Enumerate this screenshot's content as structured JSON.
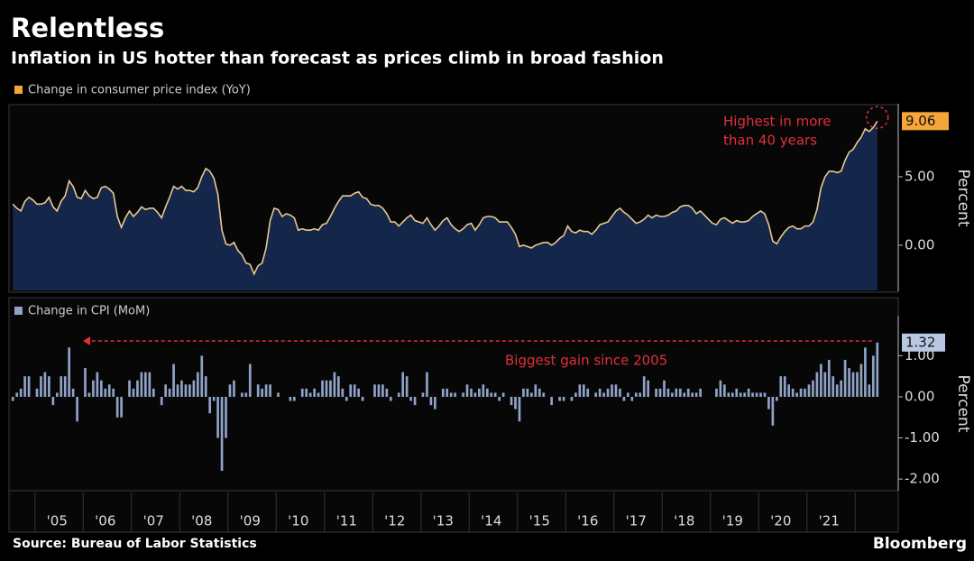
{
  "title": "Relentless",
  "subtitle": "Inflation in US hotter than forecast as prices climb in broad fashion",
  "source": "Source: Bureau of Labor Statistics",
  "brand": "Bloomberg",
  "chart_data": [
    {
      "type": "area",
      "y_label": "Percent",
      "annotation": [
        "Highest in more",
        "than 40 years"
      ],
      "ylim": [
        -3.3,
        10.2
      ],
      "yticks": [
        {
          "value": 0,
          "label": "0.00"
        },
        {
          "value": 5,
          "label": "5.00"
        }
      ],
      "series": [
        {
          "name": "Change in consumer price index (YoY)",
          "color": "#f5a53a",
          "line_color": "#e9c98f",
          "fill": "#14264a",
          "values": [
            3.0,
            2.7,
            2.5,
            3.2,
            3.5,
            3.3,
            3.0,
            3.0,
            3.1,
            3.5,
            2.8,
            2.5,
            3.2,
            3.6,
            4.7,
            4.3,
            3.5,
            3.4,
            4.0,
            3.6,
            3.4,
            3.5,
            4.2,
            4.3,
            4.1,
            3.8,
            2.1,
            1.3,
            2.0,
            2.5,
            2.1,
            2.4,
            2.8,
            2.6,
            2.7,
            2.7,
            2.4,
            2.0,
            2.8,
            3.5,
            4.3,
            4.1,
            4.3,
            4.0,
            4.0,
            3.9,
            4.2,
            5.0,
            5.6,
            5.4,
            4.9,
            3.7,
            1.1,
            0.1,
            0.0,
            0.2,
            -0.4,
            -0.7,
            -1.3,
            -1.4,
            -2.1,
            -1.5,
            -1.3,
            -0.2,
            1.8,
            2.7,
            2.6,
            2.1,
            2.3,
            2.2,
            2.0,
            1.1,
            1.2,
            1.1,
            1.1,
            1.2,
            1.1,
            1.5,
            1.6,
            2.1,
            2.7,
            3.2,
            3.6,
            3.6,
            3.6,
            3.8,
            3.9,
            3.5,
            3.4,
            3.0,
            2.9,
            2.9,
            2.7,
            2.3,
            1.7,
            1.7,
            1.4,
            1.7,
            2.0,
            2.2,
            1.8,
            1.7,
            1.6,
            2.0,
            1.5,
            1.1,
            1.4,
            1.8,
            2.0,
            1.5,
            1.2,
            1.0,
            1.2,
            1.5,
            1.6,
            1.1,
            1.5,
            2.0,
            2.1,
            2.1,
            2.0,
            1.7,
            1.7,
            1.7,
            1.3,
            0.8,
            -0.1,
            0.0,
            -0.1,
            -0.2,
            0.0,
            0.1,
            0.2,
            0.2,
            0.0,
            0.2,
            0.5,
            0.7,
            1.4,
            1.0,
            0.9,
            1.1,
            1.0,
            1.0,
            0.8,
            1.1,
            1.5,
            1.6,
            1.7,
            2.1,
            2.5,
            2.7,
            2.4,
            2.2,
            1.9,
            1.6,
            1.7,
            1.9,
            2.2,
            2.0,
            2.2,
            2.1,
            2.1,
            2.2,
            2.4,
            2.5,
            2.8,
            2.9,
            2.9,
            2.7,
            2.3,
            2.5,
            2.2,
            1.9,
            1.6,
            1.5,
            1.9,
            2.0,
            1.8,
            1.6,
            1.8,
            1.7,
            1.7,
            1.8,
            2.1,
            2.3,
            2.5,
            2.3,
            1.5,
            0.3,
            0.1,
            0.6,
            1.0,
            1.3,
            1.4,
            1.2,
            1.2,
            1.4,
            1.4,
            1.7,
            2.6,
            4.2,
            5.0,
            5.4,
            5.4,
            5.3,
            5.4,
            6.2,
            6.8,
            7.0,
            7.5,
            7.9,
            8.5,
            8.3,
            8.6,
            9.06
          ]
        }
      ]
    },
    {
      "type": "bar",
      "y_label": "Percent",
      "annotation": "Biggest gain since 2005",
      "ylim": [
        -2.26,
        1.93
      ],
      "yticks": [
        {
          "value": -2,
          "label": "-2.00"
        },
        {
          "value": -1,
          "label": "-1.00"
        },
        {
          "value": 0,
          "label": "0.00"
        },
        {
          "value": 1,
          "label": "1.00"
        }
      ],
      "categories": [
        null,
        null,
        null,
        null,
        null,
        null,
        null,
        null,
        null,
        null,
        null,
        "'05",
        null,
        null,
        null,
        null,
        null,
        null,
        null,
        null,
        null,
        null,
        null,
        "'06",
        null,
        null,
        null,
        null,
        null,
        null,
        null,
        null,
        null,
        null,
        null,
        "'07",
        null,
        null,
        null,
        null,
        null,
        null,
        null,
        null,
        null,
        null,
        null,
        "'08",
        null,
        null,
        null,
        null,
        null,
        null,
        null,
        null,
        null,
        null,
        null,
        "'09",
        null,
        null,
        null,
        null,
        null,
        null,
        null,
        null,
        null,
        null,
        null,
        "'10",
        null,
        null,
        null,
        null,
        null,
        null,
        null,
        null,
        null,
        null,
        null,
        "'11",
        null,
        null,
        null,
        null,
        null,
        null,
        null,
        null,
        null,
        null,
        null,
        "'12",
        null,
        null,
        null,
        null,
        null,
        null,
        null,
        null,
        null,
        null,
        null,
        "'13",
        null,
        null,
        null,
        null,
        null,
        null,
        null,
        null,
        null,
        null,
        null,
        "'14",
        null,
        null,
        null,
        null,
        null,
        null,
        null,
        null,
        null,
        null,
        null,
        "'15",
        null,
        null,
        null,
        null,
        null,
        null,
        null,
        null,
        null,
        null,
        null,
        "'16",
        null,
        null,
        null,
        null,
        null,
        null,
        null,
        null,
        null,
        null,
        null,
        "'17",
        null,
        null,
        null,
        null,
        null,
        null,
        null,
        null,
        null,
        null,
        null,
        "'18",
        null,
        null,
        null,
        null,
        null,
        null,
        null,
        null,
        null,
        null,
        null,
        "'19",
        null,
        null,
        null,
        null,
        null,
        null,
        null,
        null,
        null,
        null,
        null,
        "'20",
        null,
        null,
        null,
        null,
        null,
        null,
        null,
        null,
        null,
        null,
        null,
        "'21",
        null,
        null,
        null,
        null,
        null,
        null,
        null,
        null,
        null,
        null,
        null,
        null
      ],
      "series": [
        {
          "name": "Change in CPI  (MoM)",
          "color": "#8fa3c8",
          "values": [
            -0.1,
            0.1,
            0.2,
            0.5,
            0.5,
            0.0,
            0.2,
            0.5,
            0.6,
            0.5,
            -0.2,
            0.1,
            0.5,
            0.5,
            1.2,
            0.2,
            -0.6,
            0.0,
            0.7,
            0.1,
            0.4,
            0.6,
            0.4,
            0.2,
            0.3,
            0.2,
            -0.5,
            -0.5,
            0.0,
            0.4,
            0.2,
            0.4,
            0.6,
            0.6,
            0.6,
            0.2,
            0.0,
            -0.2,
            0.3,
            0.2,
            0.8,
            0.3,
            0.4,
            0.3,
            0.3,
            0.4,
            0.6,
            1.0,
            0.5,
            -0.4,
            -0.1,
            -1.0,
            -1.8,
            -1.0,
            0.3,
            0.4,
            0.0,
            0.1,
            0.1,
            0.8,
            0.0,
            0.3,
            0.2,
            0.3,
            0.3,
            0.0,
            0.1,
            0.0,
            0.0,
            -0.1,
            -0.1,
            0.0,
            0.2,
            0.2,
            0.1,
            0.2,
            0.1,
            0.4,
            0.4,
            0.4,
            0.6,
            0.5,
            0.2,
            -0.1,
            0.3,
            0.3,
            0.2,
            -0.1,
            0.0,
            0.0,
            0.3,
            0.3,
            0.3,
            0.2,
            -0.1,
            0.0,
            0.1,
            0.6,
            0.5,
            -0.1,
            -0.2,
            0.0,
            0.1,
            0.6,
            -0.2,
            -0.3,
            0.0,
            0.2,
            0.2,
            0.1,
            0.1,
            0.0,
            0.1,
            0.3,
            0.2,
            0.1,
            0.2,
            0.3,
            0.2,
            0.1,
            0.1,
            -0.1,
            0.1,
            0.0,
            -0.2,
            -0.3,
            -0.6,
            0.2,
            0.2,
            0.1,
            0.3,
            0.2,
            0.1,
            0.0,
            -0.2,
            0.0,
            -0.1,
            -0.1,
            0.0,
            -0.1,
            0.1,
            0.3,
            0.3,
            0.2,
            0.0,
            0.1,
            0.2,
            0.1,
            0.2,
            0.3,
            0.3,
            0.2,
            -0.1,
            0.1,
            -0.1,
            0.1,
            0.1,
            0.5,
            0.4,
            0.0,
            0.2,
            0.2,
            0.4,
            0.2,
            0.1,
            0.2,
            0.2,
            0.1,
            0.2,
            0.1,
            0.1,
            0.2,
            0.0,
            0.0,
            0.0,
            0.2,
            0.4,
            0.3,
            0.1,
            0.1,
            0.2,
            0.1,
            0.1,
            0.2,
            0.1,
            0.1,
            0.1,
            0.1,
            -0.3,
            -0.7,
            -0.1,
            0.5,
            0.5,
            0.3,
            0.2,
            0.1,
            0.2,
            0.2,
            0.3,
            0.4,
            0.6,
            0.8,
            0.6,
            0.9,
            0.5,
            0.3,
            0.4,
            0.9,
            0.7,
            0.6,
            0.6,
            0.8,
            1.2,
            0.3,
            1.0,
            1.32
          ]
        }
      ]
    }
  ]
}
